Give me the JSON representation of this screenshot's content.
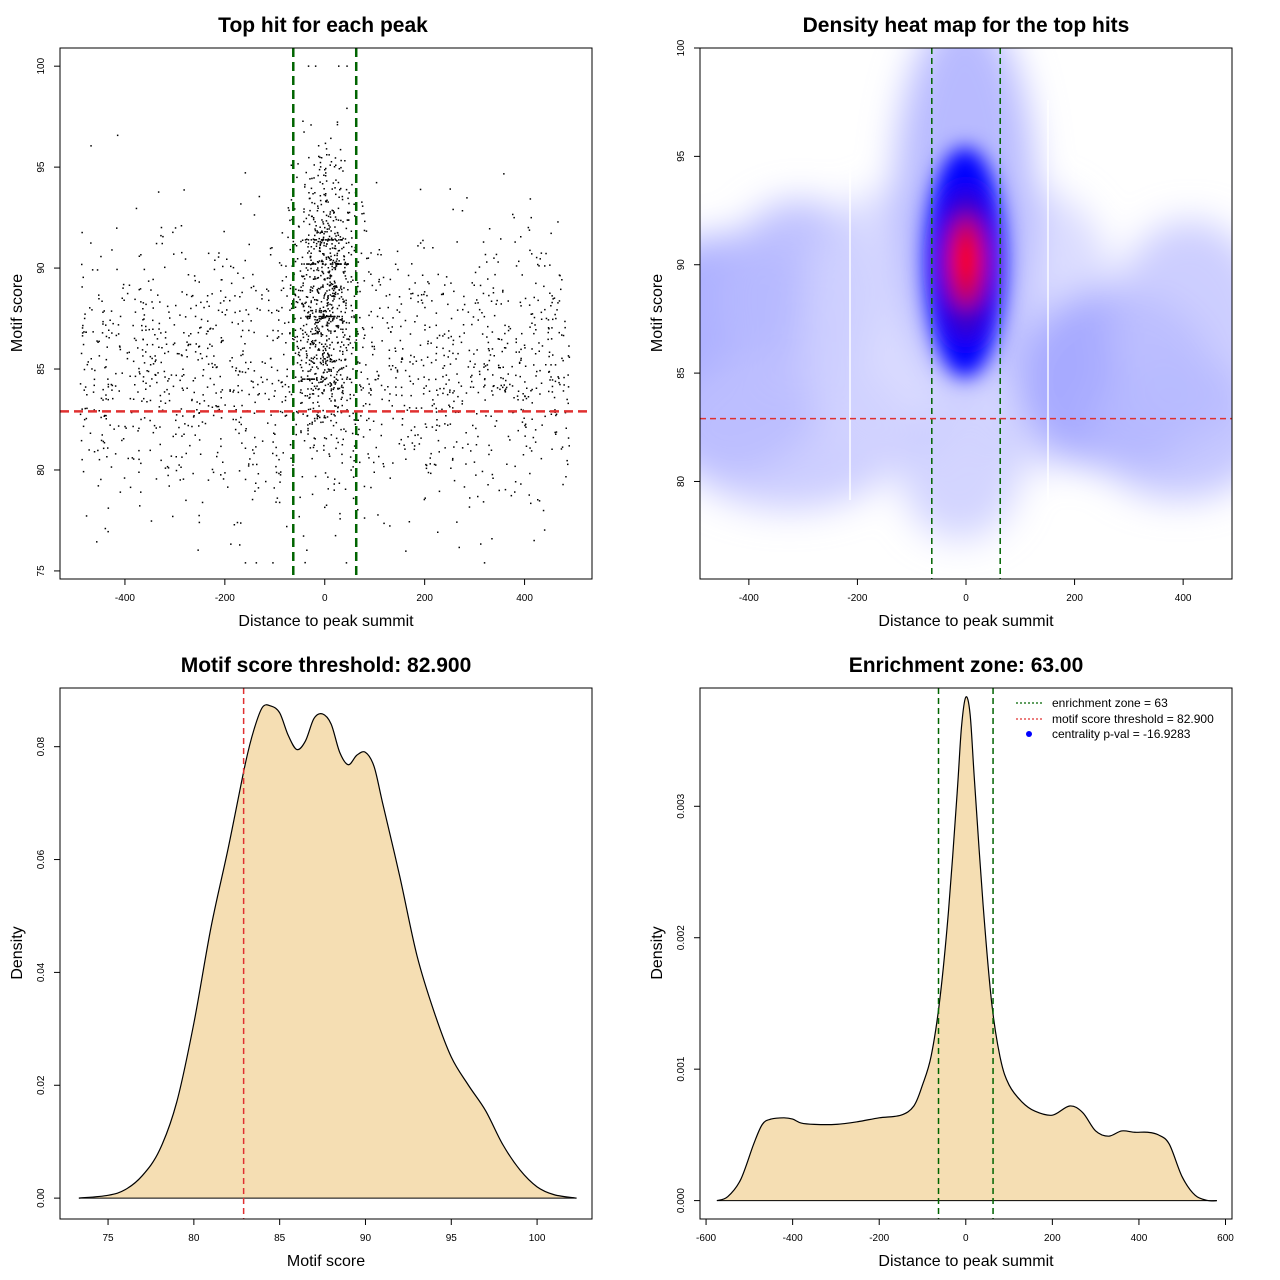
{
  "chart_data": [
    {
      "type": "scatter",
      "title": "Top hit for each peak",
      "xlabel": "Distance to peak summit",
      "ylabel": "Motif score",
      "xlim": [
        -530,
        535
      ],
      "ylim": [
        74.6,
        100.9
      ],
      "xticks": [
        -400,
        -200,
        0,
        200,
        400
      ],
      "yticks": [
        75,
        80,
        85,
        90,
        95,
        100
      ],
      "xtick_labels": [
        "-400",
        "-200",
        "0",
        "200",
        "400"
      ],
      "ytick_labels": [
        "75",
        "80",
        "85",
        "90",
        "95",
        "100"
      ],
      "grid": false,
      "enrichment_zone": [
        -63,
        63
      ],
      "threshold": 82.9,
      "point_color": "#000000",
      "vline_color": "#006400",
      "hline_color": "#e03030"
    },
    {
      "type": "heatmap",
      "title": "Density heat map for the top hits",
      "xlabel": "Distance to peak summit",
      "ylabel": "Motif score",
      "xlim": [
        -490,
        490
      ],
      "ylim": [
        75.5,
        100
      ],
      "xticks": [
        -400,
        -200,
        0,
        200,
        400
      ],
      "yticks": [
        80,
        85,
        90,
        95,
        100
      ],
      "xtick_labels": [
        "-400",
        "-200",
        "0",
        "200",
        "400"
      ],
      "ytick_labels": [
        "80",
        "85",
        "90",
        "95",
        "100"
      ],
      "grid": false,
      "enrichment_zone": [
        -63,
        63
      ],
      "threshold": 82.9,
      "colors": [
        "#ffffff",
        "#0000ff",
        "#ff0000"
      ],
      "peak": {
        "x": 0,
        "y": 90
      },
      "vline_color": "#006400",
      "hline_color": "#e03030"
    },
    {
      "type": "area",
      "title": "Motif score threshold: 82.900",
      "xlabel": "Motif score",
      "ylabel": "Density",
      "xlim": [
        72.2,
        103.2
      ],
      "ylim": [
        -0.0037,
        0.0904
      ],
      "xticks": [
        75,
        80,
        85,
        90,
        95,
        100
      ],
      "yticks": [
        0,
        0.02,
        0.04,
        0.06,
        0.08
      ],
      "xtick_labels": [
        "75",
        "80",
        "85",
        "90",
        "95",
        "100"
      ],
      "ytick_labels": [
        "0.00",
        "0.02",
        "0.04",
        "0.06",
        "0.08"
      ],
      "grid": false,
      "threshold": 82.9,
      "fill_color": "#f5deb3",
      "vline_color": "#e03030",
      "x": [
        73.3,
        75,
        76,
        77,
        78,
        79,
        80,
        81,
        82,
        83,
        83.5,
        84,
        84.5,
        85,
        85.5,
        86,
        86.5,
        87,
        87.5,
        88,
        88.5,
        89,
        89.5,
        90,
        90.5,
        91,
        92,
        93,
        94,
        95,
        96,
        97,
        98,
        99,
        100,
        101,
        102.3
      ],
      "y": [
        0,
        0.0005,
        0.0015,
        0.004,
        0.0085,
        0.017,
        0.031,
        0.048,
        0.062,
        0.077,
        0.083,
        0.087,
        0.0872,
        0.086,
        0.082,
        0.0795,
        0.081,
        0.085,
        0.0858,
        0.084,
        0.079,
        0.0768,
        0.0785,
        0.079,
        0.0765,
        0.07,
        0.057,
        0.043,
        0.033,
        0.025,
        0.02,
        0.0155,
        0.0095,
        0.005,
        0.002,
        0.0006,
        0
      ]
    },
    {
      "type": "area",
      "title": "Enrichment zone: 63.00",
      "xlabel": "Distance to peak summit",
      "ylabel": "Density",
      "xlim": [
        -614,
        615
      ],
      "ylim": [
        -0.00014,
        0.0039
      ],
      "xticks": [
        -600,
        -400,
        -200,
        0,
        200,
        400,
        600
      ],
      "yticks": [
        0,
        0.001,
        0.002,
        0.003
      ],
      "xtick_labels": [
        "-600",
        "-400",
        "-200",
        "0",
        "200",
        "400",
        "600"
      ],
      "ytick_labels": [
        "0.000",
        "0.001",
        "0.002",
        "0.003"
      ],
      "grid": false,
      "enrichment_zone": [
        -63,
        63
      ],
      "fill_color": "#f5deb3",
      "vline_color": "#006400",
      "x": [
        -575,
        -550,
        -520,
        -490,
        -470,
        -450,
        -420,
        -400,
        -380,
        -350,
        -300,
        -250,
        -200,
        -150,
        -120,
        -100,
        -80,
        -60,
        -40,
        -20,
        -10,
        0,
        10,
        20,
        40,
        60,
        80,
        100,
        130,
        160,
        200,
        240,
        270,
        300,
        330,
        360,
        390,
        420,
        445,
        470,
        500,
        530,
        560,
        580
      ],
      "y": [
        0,
        3e-05,
        0.00016,
        0.00043,
        0.00058,
        0.00062,
        0.00063,
        0.00062,
        0.00059,
        0.00058,
        0.00058,
        0.0006,
        0.00063,
        0.00065,
        0.00072,
        0.00088,
        0.0011,
        0.00153,
        0.0022,
        0.0031,
        0.0036,
        0.00383,
        0.0037,
        0.0032,
        0.00225,
        0.0015,
        0.00108,
        0.00088,
        0.00075,
        0.00068,
        0.00065,
        0.00072,
        0.00067,
        0.00053,
        0.00049,
        0.00053,
        0.00052,
        0.00052,
        0.0005,
        0.00043,
        0.00018,
        4e-05,
        0,
        0
      ],
      "legend_position": "top-right",
      "legend": [
        {
          "label": "enrichment zone = 63",
          "color": "#006400",
          "style": "dotted-line"
        },
        {
          "label": "motif score threshold = 82.900",
          "color": "#e03030",
          "style": "dotted-line"
        },
        {
          "label": "centrality p-val = -16.9283",
          "color": "#0000ff",
          "style": "point"
        }
      ]
    }
  ]
}
